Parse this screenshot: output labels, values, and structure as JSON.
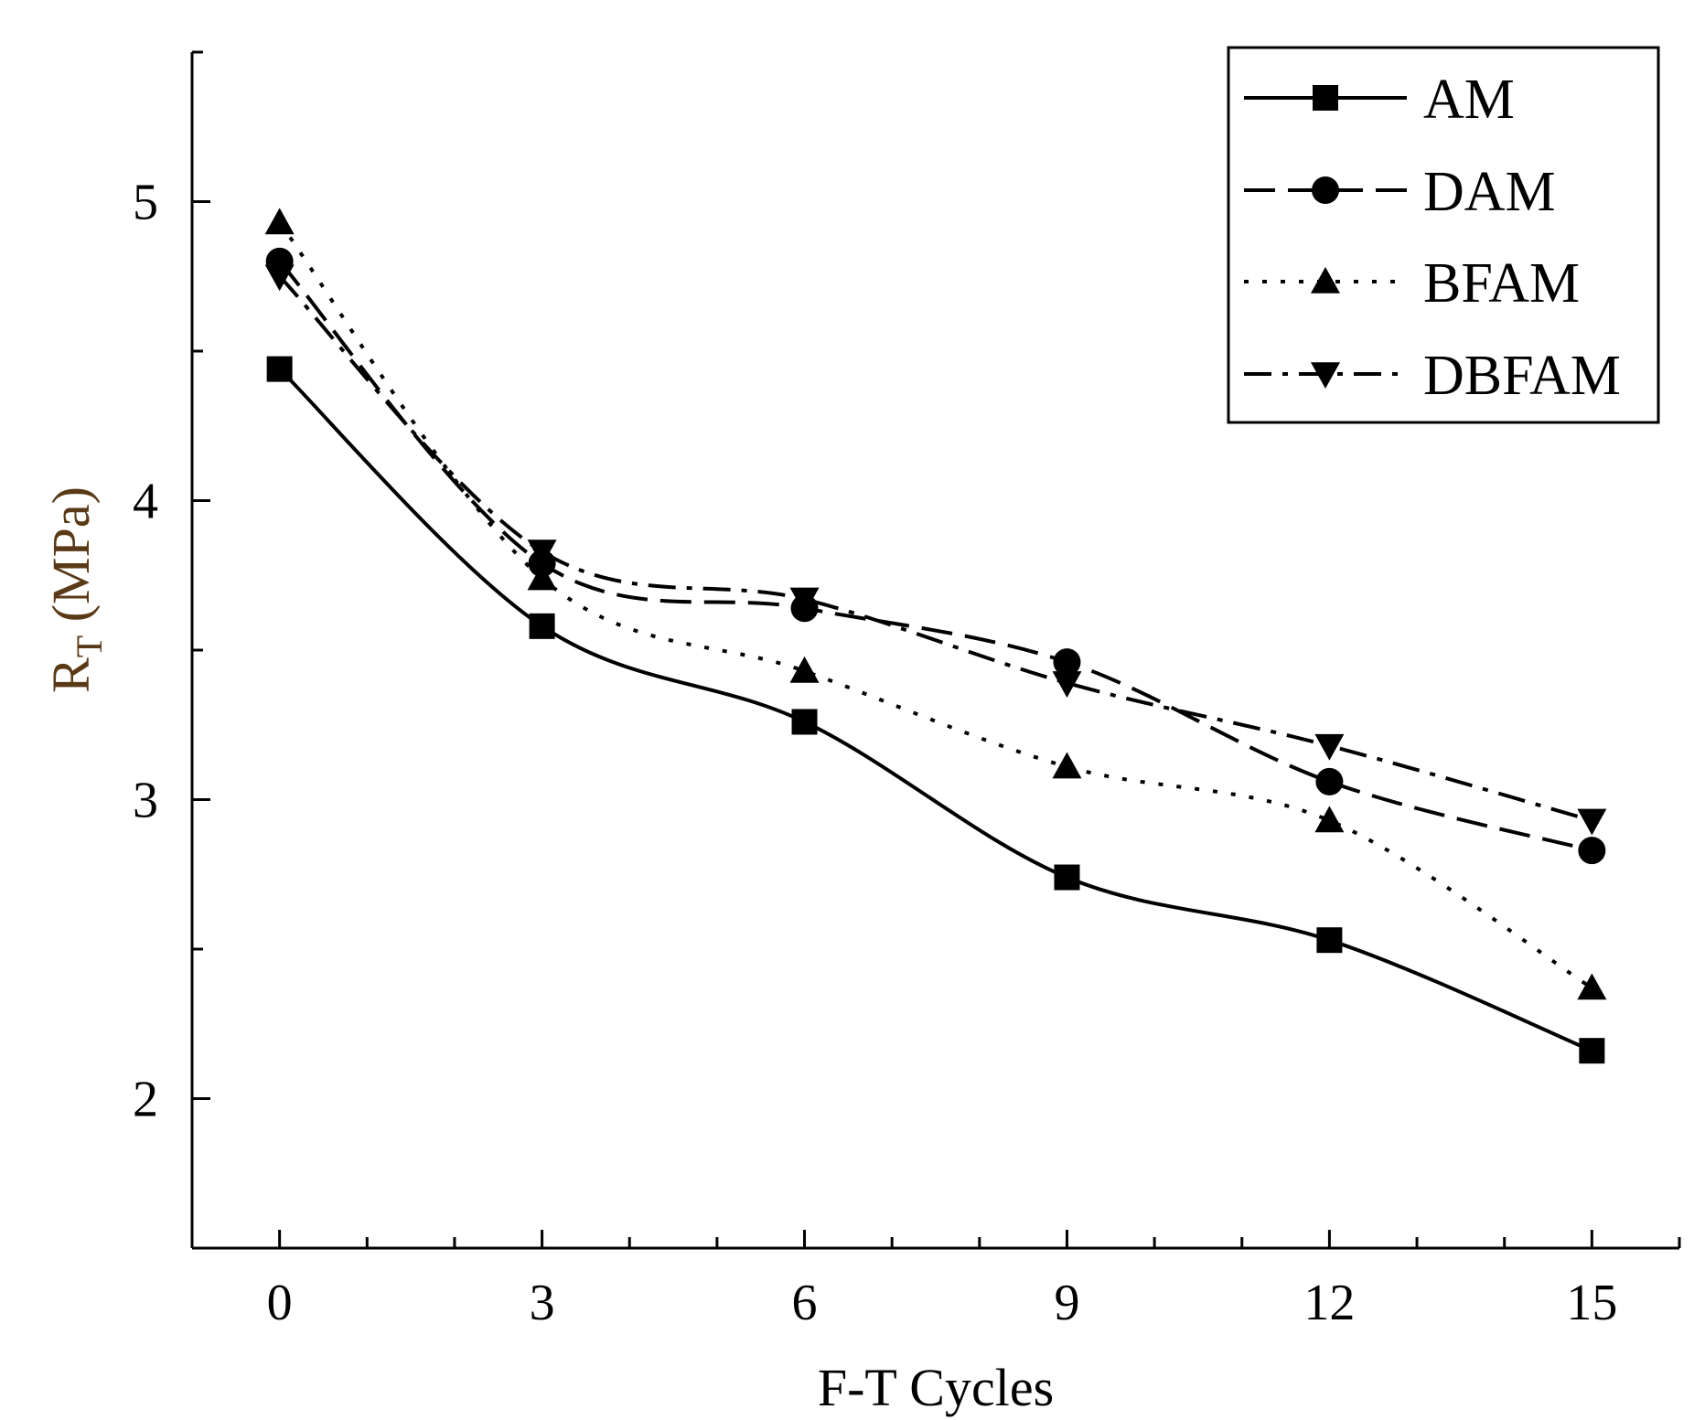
{
  "chart_data": {
    "type": "line",
    "title": "",
    "xlabel": "F-T Cycles",
    "ylabel": {
      "main": "R",
      "subscript": "T",
      "unit": " (MPa)"
    },
    "x": [
      0,
      3,
      6,
      9,
      12,
      15
    ],
    "x_ticks": [
      "0",
      "3",
      "6",
      "9",
      "12",
      "15"
    ],
    "y_ticks": [
      "2",
      "3",
      "4",
      "5"
    ],
    "xlim": [
      -1,
      16
    ],
    "ylim": [
      1.5,
      5.5
    ],
    "grid": false,
    "legend_position": "top-right",
    "series": [
      {
        "name": "AM",
        "values": [
          4.44,
          3.58,
          3.26,
          2.74,
          2.53,
          2.16
        ],
        "marker": "square",
        "line": "solid"
      },
      {
        "name": "DAM",
        "values": [
          4.8,
          3.79,
          3.64,
          3.46,
          3.06,
          2.83
        ],
        "marker": "circle",
        "line": "dash"
      },
      {
        "name": "BFAM",
        "values": [
          4.93,
          3.74,
          3.43,
          3.11,
          2.93,
          2.37
        ],
        "marker": "triangle-up",
        "line": "dot"
      },
      {
        "name": "DBFAM",
        "values": [
          4.75,
          3.83,
          3.67,
          3.39,
          3.18,
          2.93
        ],
        "marker": "triangle-down",
        "line": "dashdot"
      }
    ]
  }
}
